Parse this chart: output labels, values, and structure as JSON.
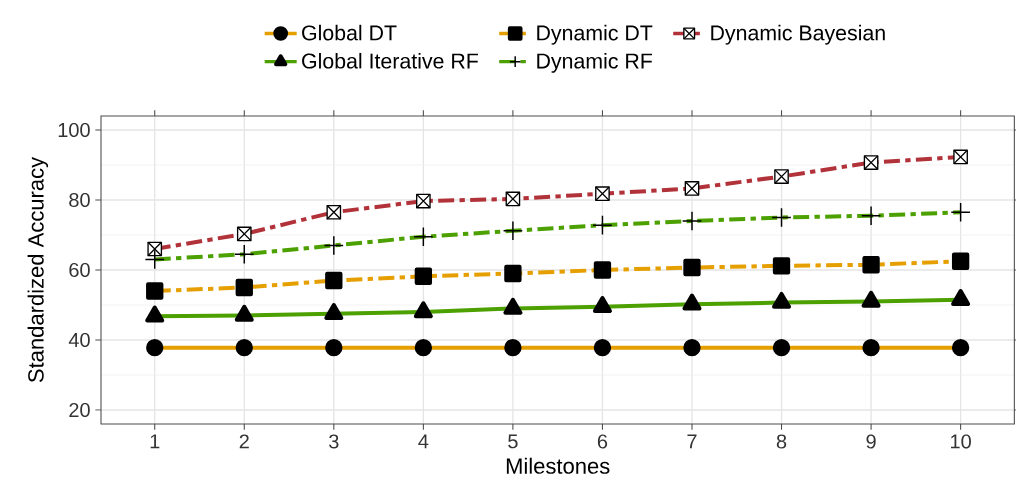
{
  "chart_data": {
    "type": "line",
    "xlabel": "Milestones",
    "ylabel": "Standardized Accuracy",
    "x": [
      1,
      2,
      3,
      4,
      5,
      6,
      7,
      8,
      9,
      10
    ],
    "xlim": [
      0.4,
      10.6
    ],
    "xticks": [
      1,
      2,
      3,
      4,
      5,
      6,
      7,
      8,
      9,
      10
    ],
    "ylim": [
      16,
      104
    ],
    "yticks": [
      20,
      40,
      60,
      80,
      100
    ],
    "grid": true,
    "legend": "top",
    "series": [
      {
        "name": "Global DT",
        "color": "#e69f00",
        "marker": "circle",
        "line_style": "solid",
        "values": [
          37.8,
          37.8,
          37.8,
          37.8,
          37.8,
          37.8,
          37.8,
          37.8,
          37.8,
          37.8
        ]
      },
      {
        "name": "Dynamic DT",
        "color": "#e69f00",
        "marker": "square",
        "line_style": "dashed",
        "values": [
          54,
          55,
          57,
          58.2,
          59,
          60,
          60.7,
          61.2,
          61.5,
          62.5
        ]
      },
      {
        "name": "Dynamic Bayesian",
        "color": "#b2323a",
        "marker": "square-x",
        "line_style": "dashed",
        "values": [
          66,
          70.3,
          76.5,
          79.7,
          80.3,
          81.8,
          83.3,
          86.7,
          90.7,
          92.3
        ]
      },
      {
        "name": "Global Iterative RF",
        "color": "#4ca000",
        "marker": "triangle",
        "line_style": "solid",
        "values": [
          46.8,
          47,
          47.5,
          48,
          49,
          49.5,
          50.2,
          50.7,
          51,
          51.5
        ]
      },
      {
        "name": "Dynamic RF",
        "color": "#4ca000",
        "marker": "cross",
        "line_style": "dashed",
        "values": [
          63,
          64.5,
          67,
          69.5,
          71.2,
          72.8,
          74,
          75,
          75.5,
          76.5
        ]
      }
    ]
  }
}
